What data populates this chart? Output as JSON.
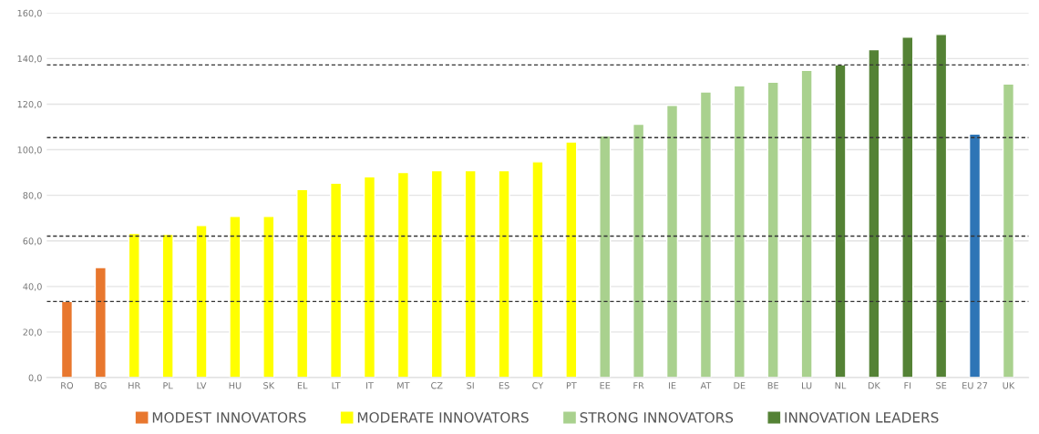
{
  "chart_data": {
    "type": "bar",
    "categories": [
      "RO",
      "BG",
      "HR",
      "PL",
      "LV",
      "HU",
      "SK",
      "EL",
      "LT",
      "IT",
      "MT",
      "CZ",
      "SI",
      "ES",
      "CY",
      "PT",
      "EE",
      "FR",
      "IE",
      "AT",
      "DE",
      "BE",
      "LU",
      "NL",
      "DK",
      "FI",
      "SE",
      "EU 27",
      "UK"
    ],
    "series": [
      {
        "name": "MODEST INNOVATORS",
        "color": "#e8772e",
        "values": [
          33.4,
          48.3,
          null,
          null,
          null,
          null,
          null,
          null,
          null,
          null,
          null,
          null,
          null,
          null,
          null,
          null,
          null,
          null,
          null,
          null,
          null,
          null,
          null,
          null,
          null,
          null,
          null,
          null,
          null
        ]
      },
      {
        "name": "MODERATE INNOVATORS",
        "color": "#ffff00",
        "values": [
          null,
          null,
          63.3,
          62.9,
          66.8,
          70.8,
          70.8,
          82.5,
          85.3,
          88.1,
          90.0,
          90.8,
          90.8,
          90.8,
          94.7,
          103.4,
          null,
          null,
          null,
          null,
          null,
          null,
          null,
          null,
          null,
          null,
          null,
          null,
          null
        ]
      },
      {
        "name": "STRONG INNOVATORS",
        "color": "#a9d18e",
        "values": [
          null,
          null,
          null,
          null,
          null,
          null,
          null,
          null,
          null,
          null,
          null,
          null,
          null,
          null,
          null,
          null,
          106.1,
          111.2,
          119.5,
          125.4,
          128.1,
          129.7,
          134.8,
          null,
          null,
          null,
          null,
          null,
          128.9
        ]
      },
      {
        "name": "INNOVATION LEADERS",
        "color": "#548235",
        "values": [
          null,
          null,
          null,
          null,
          null,
          null,
          null,
          null,
          null,
          null,
          null,
          null,
          null,
          null,
          null,
          null,
          null,
          null,
          null,
          null,
          null,
          null,
          null,
          137.2,
          143.9,
          149.4,
          150.6,
          null,
          null
        ]
      },
      {
        "color": "#2e75b6",
        "values": [
          null,
          null,
          null,
          null,
          null,
          null,
          null,
          null,
          null,
          null,
          null,
          null,
          null,
          null,
          null,
          null,
          null,
          null,
          null,
          null,
          null,
          null,
          null,
          null,
          null,
          null,
          null,
          106.9,
          null
        ]
      }
    ],
    "ylim": [
      0,
      160
    ],
    "yticks": [
      {
        "value": 0,
        "label": "0,0"
      },
      {
        "value": 20,
        "label": "20,0"
      },
      {
        "value": 40,
        "label": "40,0"
      },
      {
        "value": 60,
        "label": "60,0"
      },
      {
        "value": 80,
        "label": "80,0"
      },
      {
        "value": 100,
        "label": "100,0"
      },
      {
        "value": 120,
        "label": "120,0"
      },
      {
        "value": 140,
        "label": "140,0"
      },
      {
        "value": 160,
        "label": "160,0"
      }
    ],
    "ref_lines": [
      {
        "axis": "y",
        "value": 33.4,
        "color": "#333333",
        "line_style": "dashed"
      },
      {
        "axis": "y",
        "value": 62.1,
        "color": "#333333",
        "line_style": "dashed"
      },
      {
        "axis": "y",
        "value": 105.3,
        "color": "#333333",
        "line_style": "dashed"
      },
      {
        "axis": "y",
        "value": 137.2,
        "color": "#333333",
        "line_style": "dashed"
      }
    ],
    "grid": "y",
    "legend": "bottom"
  }
}
